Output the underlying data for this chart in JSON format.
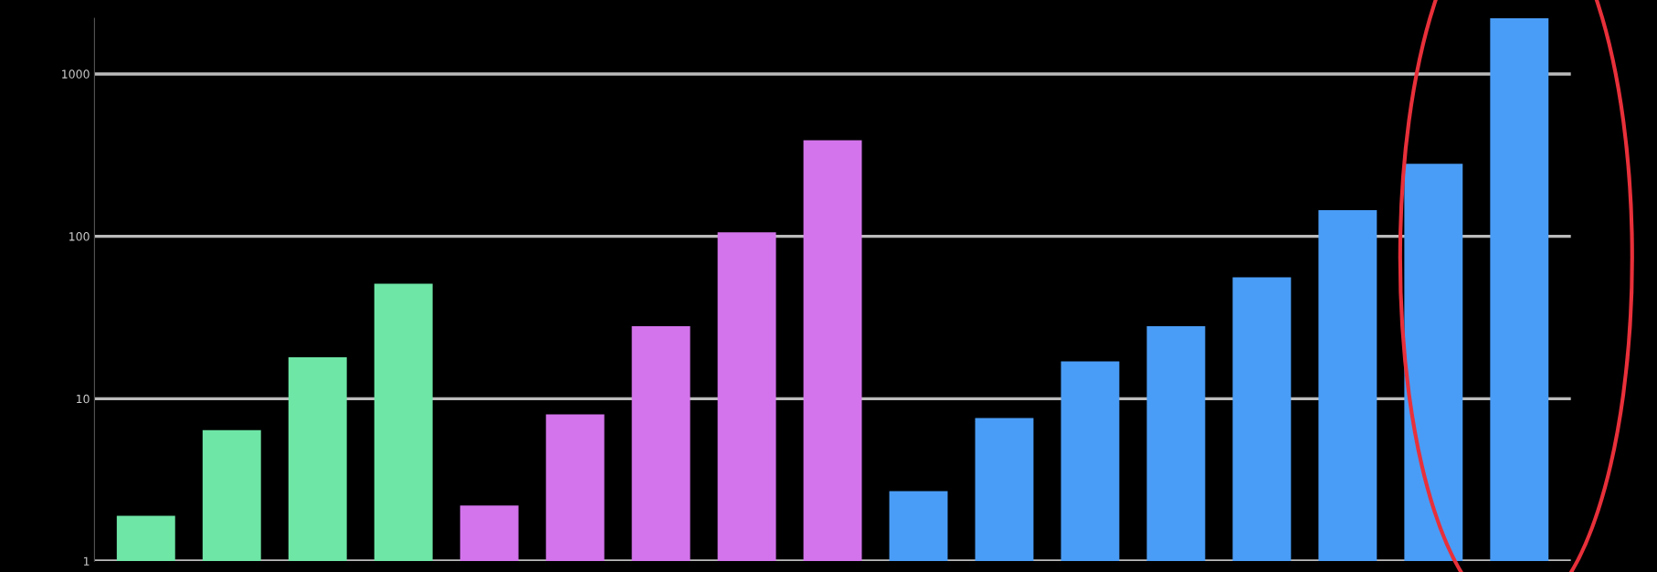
{
  "chart_data": {
    "type": "bar",
    "categories": [
      null,
      null,
      null,
      null,
      null,
      null,
      null,
      null,
      null,
      null,
      null,
      null,
      null,
      null,
      null,
      null,
      null
    ],
    "values": [
      1.9,
      6.4,
      18,
      51,
      2.2,
      8,
      28,
      106,
      390,
      2.7,
      7.6,
      17,
      28,
      56,
      145,
      280,
      2200
    ],
    "colors": [
      "#6ee6a6",
      "#6ee6a6",
      "#6ee6a6",
      "#6ee6a6",
      "#d474ec",
      "#d474ec",
      "#d474ec",
      "#d474ec",
      "#d474ec",
      "#4a9df6",
      "#4a9df6",
      "#4a9df6",
      "#4a9df6",
      "#4a9df6",
      "#4a9df6",
      "#4a9df6",
      "#4a9df6"
    ],
    "log": true,
    "ylim": [
      1,
      2200
    ],
    "yticks": [
      1,
      10,
      100,
      1000
    ],
    "grid": "y"
  }
}
